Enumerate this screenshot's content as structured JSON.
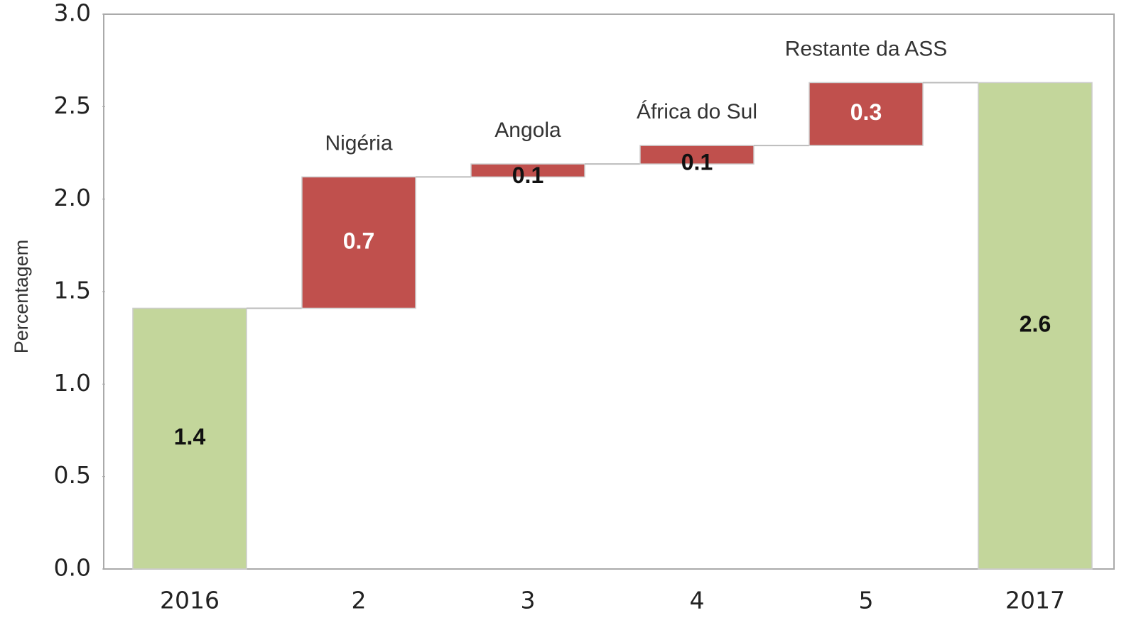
{
  "chart_data": {
    "type": "waterfall",
    "y_label": "Percentagem",
    "categories": [
      "2016",
      "2",
      "3",
      "4",
      "5",
      "2017"
    ],
    "bar_labels": [
      null,
      "Nigéria",
      "Angola",
      "África do Sul",
      "Restante da ASS",
      null
    ],
    "measure": [
      "total",
      "relative",
      "relative",
      "relative",
      "relative",
      "total"
    ],
    "values": [
      1.41,
      0.71,
      0.07,
      0.1,
      0.34,
      2.63
    ],
    "value_labels": [
      "1.4",
      "0.7",
      "0.1",
      "0.1",
      "0.3",
      "2.6"
    ],
    "colors": {
      "total": "#c3d69b",
      "relative": "#c0504d"
    },
    "ylim": [
      0,
      3
    ],
    "yticks": [
      {
        "value": 0,
        "label": "0.0"
      },
      0.5,
      {
        "value": 1,
        "label": "1.0"
      },
      1.5,
      {
        "value": 2,
        "label": "2.0"
      },
      2.5,
      {
        "value": 3,
        "label": "3.0"
      }
    ]
  }
}
